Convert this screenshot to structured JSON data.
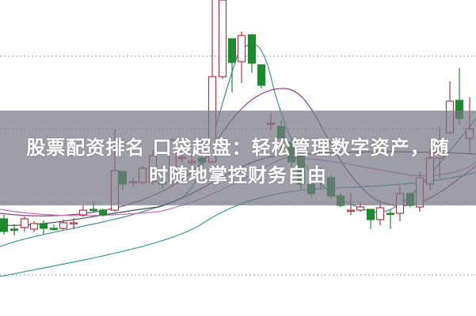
{
  "caption": {
    "line1": "股票配资排名 口袋超盘：轻松管理数字资产，随",
    "line2": "时随地掌控财务自由"
  },
  "colors": {
    "up_candle": "#b3343e",
    "down_candle": "#1e8a2e",
    "grid": "#9a9aaa",
    "banner": "#787887"
  }
}
